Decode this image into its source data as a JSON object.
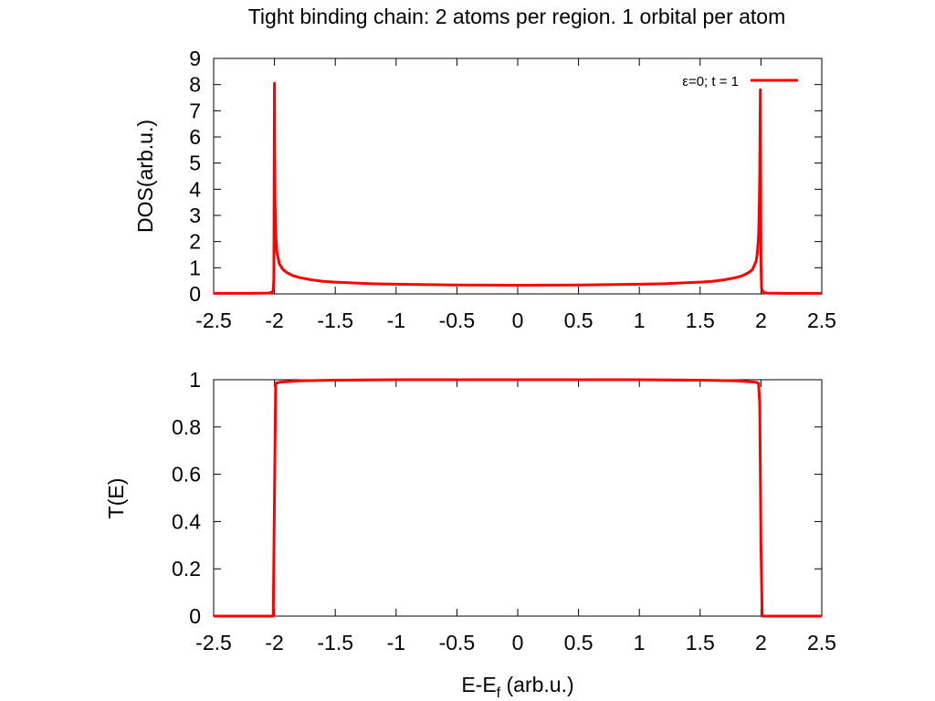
{
  "title": "Tight binding chain: 2 atoms per region. 1 orbital per atom",
  "colors": {
    "series": "#ff0000",
    "axes": "#000000",
    "background": "#ffffff"
  },
  "chart_data": [
    {
      "type": "line",
      "panel": "top",
      "ylabel": "DOS(arb.u.)",
      "xlabel": "",
      "xlim": [
        -2.5,
        2.5
      ],
      "ylim": [
        0,
        9
      ],
      "xticks": [
        "-2.5",
        "-2",
        "-1.5",
        "-1",
        "-0.5",
        "0",
        "0.5",
        "1",
        "1.5",
        "2",
        "2.5"
      ],
      "yticks": [
        "0",
        "1",
        "2",
        "3",
        "4",
        "5",
        "6",
        "7",
        "8",
        "9"
      ],
      "legend": {
        "placement": "top-right"
      },
      "series": [
        {
          "name": "ε=0; t = 1",
          "color": "#ff0000",
          "x": [
            -2.5,
            -2.2,
            -2.05,
            -2.02,
            -2.01,
            -2.005,
            -2.0,
            -1.998,
            -1.995,
            -1.99,
            -1.98,
            -1.96,
            -1.93,
            -1.9,
            -1.85,
            -1.8,
            -1.7,
            -1.6,
            -1.5,
            -1.2,
            -1.0,
            -0.5,
            0,
            0.5,
            1.0,
            1.2,
            1.5,
            1.6,
            1.7,
            1.8,
            1.85,
            1.9,
            1.93,
            1.96,
            1.97,
            1.98,
            1.985,
            1.99,
            1.995,
            2.0,
            2.005,
            2.02,
            2.05,
            2.2,
            2.5
          ],
          "y": [
            0.02,
            0.02,
            0.03,
            0.06,
            0.15,
            0.6,
            8.05,
            5.5,
            3.4,
            2.3,
            1.6,
            1.15,
            0.93,
            0.82,
            0.7,
            0.63,
            0.54,
            0.48,
            0.45,
            0.39,
            0.37,
            0.34,
            0.33,
            0.34,
            0.37,
            0.39,
            0.45,
            0.48,
            0.54,
            0.63,
            0.7,
            0.82,
            0.93,
            1.25,
            1.55,
            2.2,
            3.0,
            4.6,
            7.8,
            1.2,
            0.2,
            0.06,
            0.03,
            0.02,
            0.02
          ]
        }
      ]
    },
    {
      "type": "line",
      "panel": "bottom",
      "ylabel": "T(E)",
      "xlabel": "E-E",
      "xlabel_sub": "f",
      "xlabel_suffix": " (arb.u.)",
      "xlim": [
        -2.5,
        2.5
      ],
      "ylim": [
        0,
        1
      ],
      "xticks": [
        "-2.5",
        "-2",
        "-1.5",
        "-1",
        "-0.5",
        "0",
        "0.5",
        "1",
        "1.5",
        "2",
        "2.5"
      ],
      "yticks": [
        "0",
        "0.2",
        "0.4",
        "0.6",
        "0.8",
        "1"
      ],
      "series": [
        {
          "color": "#ff0000",
          "x": [
            -2.5,
            -2.01,
            -2.0,
            -1.99,
            -1.95,
            -1.8,
            -1.5,
            -1.0,
            0,
            1.0,
            1.5,
            1.8,
            1.95,
            1.98,
            1.99,
            2.0,
            2.01,
            2.5
          ],
          "y": [
            0.0,
            0.0,
            0.5,
            0.985,
            0.99,
            0.995,
            0.998,
            1.0,
            1.0,
            1.0,
            0.998,
            0.995,
            0.99,
            0.985,
            0.9,
            0.3,
            0.0,
            0.0
          ]
        }
      ]
    }
  ]
}
